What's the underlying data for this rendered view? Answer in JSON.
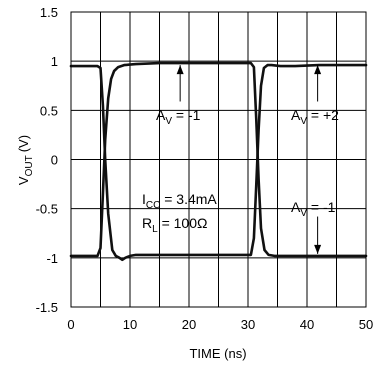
{
  "chart_data": {
    "type": "line",
    "title": "",
    "xlabel": "TIME (ns)",
    "ylabel_main": "V",
    "ylabel_sub": "OUT",
    "ylabel_unit": "(V)",
    "xlim": [
      0,
      50
    ],
    "ylim": [
      -1.5,
      1.5
    ],
    "x_ticks": [
      0,
      10,
      20,
      30,
      40,
      50
    ],
    "x_tick_labels": [
      "0",
      "10",
      "20",
      "30",
      "40",
      "50"
    ],
    "y_ticks": [
      -1.5,
      -1,
      -0.5,
      0,
      0.5,
      1,
      1.5
    ],
    "y_tick_labels": [
      "-1.5",
      "-1",
      "-0.5",
      "0",
      "0.5",
      "1",
      "1.5"
    ],
    "x_grid_lines": [
      0,
      5,
      10,
      15,
      20,
      25,
      30,
      35,
      40,
      45,
      50
    ],
    "y_grid_lines": [
      -1.5,
      -1,
      -0.5,
      0,
      0.5,
      1,
      1.5
    ],
    "grid": true,
    "series": [
      {
        "x": [
          0,
          4.5,
          5.0,
          5.4,
          5.8,
          6.3,
          7.0,
          7.6,
          8.2,
          8.7,
          9.2,
          10.0,
          11.0,
          13.0,
          30.5,
          31.0,
          31.4,
          31.8,
          32.2,
          32.7,
          33.3,
          34.0,
          35.5,
          38.0,
          42.0,
          50
        ],
        "y": [
          0.95,
          0.95,
          0.93,
          0.55,
          0.0,
          -0.55,
          -0.92,
          -0.98,
          -1.0,
          -1.02,
          -1.0,
          -0.98,
          -0.97,
          -0.97,
          -0.97,
          -0.8,
          -0.25,
          0.3,
          0.75,
          0.93,
          0.96,
          0.96,
          0.95,
          0.95,
          0.96,
          0.96
        ]
      },
      {
        "x": [
          0,
          4.5,
          5.0,
          5.4,
          5.8,
          6.3,
          6.8,
          7.3,
          8.0,
          9.0,
          11.0,
          15.0,
          20.0,
          25.0,
          30.5,
          31.0,
          31.4,
          31.8,
          32.2,
          32.8,
          33.5,
          34.5,
          36.0,
          40.0,
          45.0,
          50
        ],
        "y": [
          -0.98,
          -0.98,
          -0.9,
          -0.35,
          0.2,
          0.62,
          0.82,
          0.9,
          0.94,
          0.96,
          0.97,
          0.98,
          0.98,
          0.98,
          0.98,
          0.94,
          0.4,
          -0.2,
          -0.7,
          -0.92,
          -0.97,
          -0.98,
          -0.98,
          -0.98,
          -0.98,
          -0.98
        ]
      }
    ],
    "annotations": [
      {
        "main": "A",
        "sub": "V",
        "rest": " = -1"
      },
      {
        "main": "A",
        "sub": "V",
        "rest": " = +2"
      },
      {
        "main": "I",
        "sub": "CC",
        "rest": " = 3.4mA"
      },
      {
        "main": "R",
        "sub": "L",
        "rest": " = 100Ω"
      },
      {
        "main": "A",
        "sub": "V",
        "rest": " = -1"
      }
    ],
    "arrows": [
      {
        "x": 18.5,
        "y_from": 0.59,
        "y_to": 0.96
      },
      {
        "x": 41.8,
        "y_from": 0.59,
        "y_to": 0.96
      },
      {
        "x": 41.8,
        "y_from": -0.58,
        "y_to": -0.96
      }
    ]
  }
}
